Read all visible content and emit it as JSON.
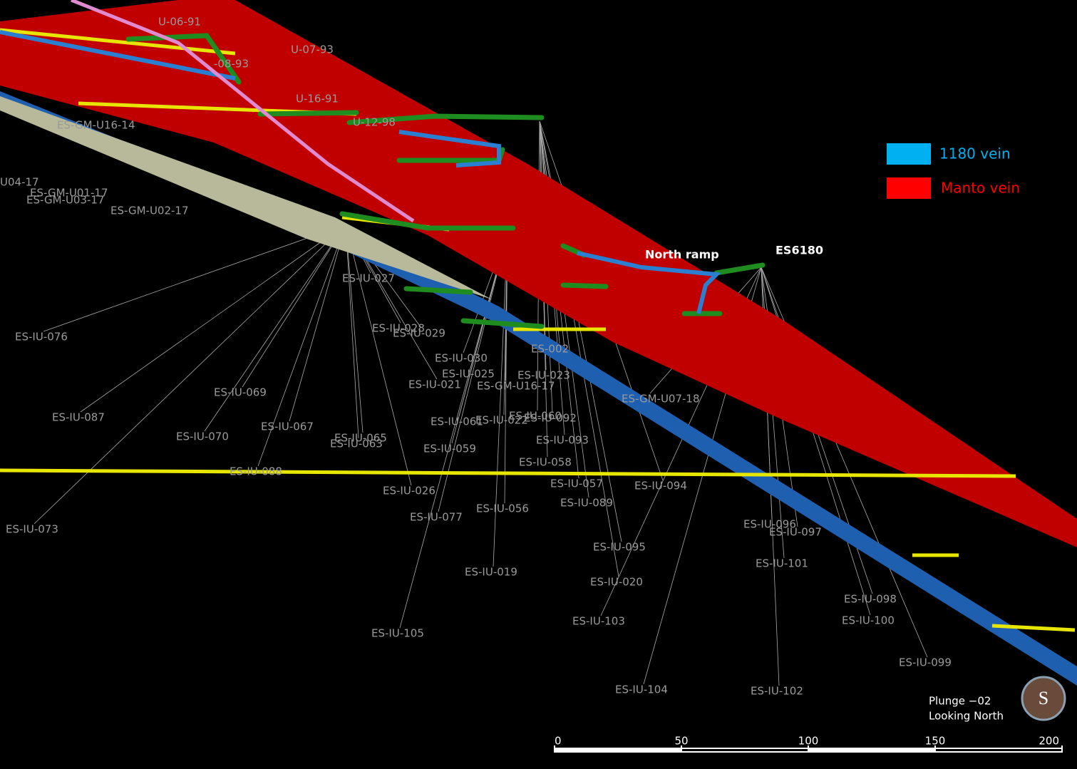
{
  "legend": [
    {
      "label": "1180 vein",
      "color": "#00b0f0"
    },
    {
      "label": "Manto vein",
      "color": "#ff0000"
    }
  ],
  "annotations": {
    "north_ramp": "North ramp",
    "collar": "ES6180"
  },
  "drillhole_labels": [
    "U-06-91",
    "U-07-93",
    "-08-93",
    "U-16-91",
    "U-12-98",
    "ES-GM-U16-14",
    "U04-17",
    "ES-GM-U01-17",
    "ES-GM-U03-17",
    "ES-GM-U02-17",
    "ES-IU-076",
    "ES-IU-069",
    "ES-IU-087",
    "ES-IU-070",
    "ES-IU-067",
    "ES-IU-065",
    "ES-IU-063",
    "ES-IU-088",
    "ES-IU-073",
    "ES-IU-026",
    "ES-IU-077",
    "ES-IU-056",
    "ES-IU-019",
    "ES-IU-105",
    "ES-IU-059",
    "ES-IU-061",
    "ES-IU-022",
    "ES-IU-060",
    "ES-IU-092",
    "ES-IU-093",
    "ES-IU-058",
    "ES-IU-057",
    "ES-IU-089",
    "ES-IU-094",
    "ES-IU-095",
    "ES-IU-020",
    "ES-IU-103",
    "ES-IU-104",
    "ES-IU-096",
    "ES-IU-097",
    "ES-IU-101",
    "ES-IU-098",
    "ES-IU-100",
    "ES-IU-099",
    "ES-IU-102",
    "ES-IU-030",
    "ES-IU-025",
    "ES-IU-021",
    "ES-IU-023",
    "ES-GM-U16-17",
    "ES-IU-029",
    "ES-IU-028",
    "ES-002",
    "ES-GM-U07-18",
    "ES-IU-027"
  ],
  "view": {
    "plunge": "Plunge −02",
    "direction": "Looking North",
    "compass": "S"
  },
  "scale_bar": {
    "ticks": [
      0,
      50,
      100,
      150,
      200
    ]
  }
}
